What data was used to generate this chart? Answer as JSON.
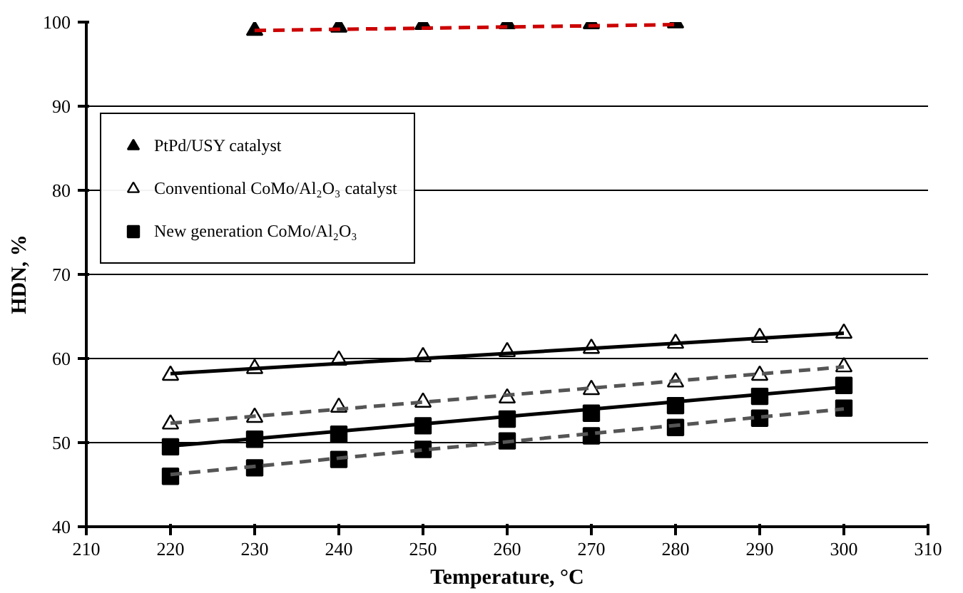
{
  "chart_data": {
    "type": "scatter",
    "xlabel": "Temperature, °C",
    "ylabel": "HDN, %",
    "xlim": [
      210,
      310
    ],
    "ylim": [
      40,
      100
    ],
    "xticks": [
      210,
      220,
      230,
      240,
      250,
      260,
      270,
      280,
      290,
      300,
      310
    ],
    "yticks": [
      40,
      50,
      60,
      70,
      80,
      90,
      100
    ],
    "grid": "y",
    "legend": "top left",
    "series": [
      {
        "name": "PtPd/USY catalyst",
        "marker": "triangle",
        "color": "#000000",
        "x": [
          230,
          240,
          250,
          260,
          270,
          280
        ],
        "values": [
          99.0,
          99.4,
          99.7,
          99.8,
          99.8,
          99.9
        ]
      },
      {
        "type": "line",
        "color": "#cc0000",
        "line_style": "dashed",
        "x": [
          230,
          280
        ],
        "values": [
          99.0,
          99.7
        ]
      },
      {
        "name": "Conventional CoMo/Al₂O₃ catalyst",
        "marker": "triangle",
        "color": "#ffffff",
        "x": [
          220,
          230,
          240,
          250,
          260,
          270,
          280,
          290,
          300
        ],
        "values": [
          58.0,
          58.8,
          59.8,
          60.2,
          60.8,
          61.2,
          61.8,
          62.5,
          63.0
        ]
      },
      {
        "type": "line",
        "color": "#000000",
        "line_style": "solid",
        "x": [
          220,
          300
        ],
        "values": [
          58.2,
          63.0
        ]
      },
      {
        "marker": "triangle",
        "color": "#ffffff",
        "x": [
          220,
          230,
          240,
          250,
          260,
          270,
          280,
          290,
          300
        ],
        "values": [
          52.2,
          53.0,
          54.2,
          54.8,
          55.3,
          56.3,
          57.2,
          58.0,
          59.0
        ]
      },
      {
        "type": "line",
        "color": "#555555",
        "line_style": "dashed",
        "x": [
          220,
          300
        ],
        "values": [
          52.3,
          59.0
        ]
      },
      {
        "name": "New generation CoMo/Al₂O₃",
        "marker": "square",
        "color": "#000000",
        "x": [
          220,
          230,
          240,
          250,
          260,
          270,
          280,
          290,
          300
        ],
        "values": [
          49.5,
          50.4,
          51.0,
          52.0,
          52.8,
          53.5,
          54.4,
          55.5,
          56.8
        ]
      },
      {
        "type": "line",
        "color": "#000000",
        "line_style": "solid",
        "x": [
          220,
          300
        ],
        "values": [
          49.6,
          56.6
        ]
      },
      {
        "marker": "square",
        "color": "#000000",
        "x": [
          220,
          230,
          240,
          250,
          260,
          270,
          280,
          290,
          300
        ],
        "values": [
          46.0,
          47.0,
          48.0,
          49.2,
          50.2,
          50.8,
          51.8,
          52.9,
          54.1
        ]
      },
      {
        "type": "line",
        "color": "#555555",
        "line_style": "dashed",
        "x": [
          220,
          300
        ],
        "values": [
          46.2,
          54.0
        ]
      }
    ]
  }
}
